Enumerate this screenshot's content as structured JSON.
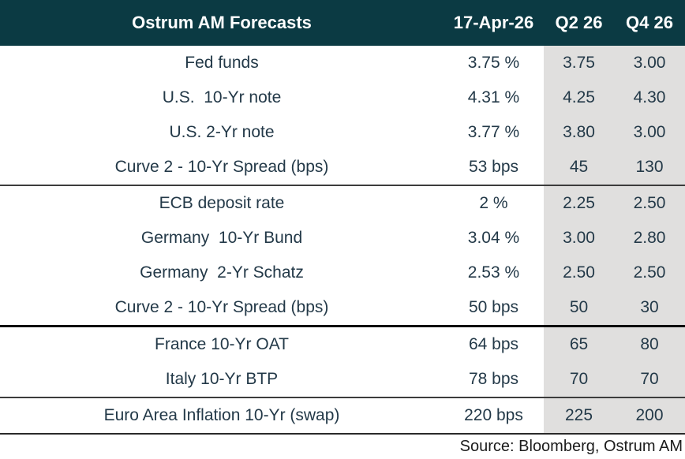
{
  "table": {
    "headers": [
      "Ostrum AM Forecasts",
      "17-Apr-26",
      "Q2 26",
      "Q4 26"
    ],
    "rows": [
      {
        "label": "Fed funds",
        "current": "3.75 %",
        "q2_26": "3.75",
        "q4_26": "3.00",
        "separator_after": ""
      },
      {
        "label": "U.S.  10-Yr note",
        "current": "4.31 %",
        "q2_26": "4.25",
        "q4_26": "4.30",
        "separator_after": ""
      },
      {
        "label": "U.S. 2-Yr note",
        "current": "3.77 %",
        "q2_26": "3.80",
        "q4_26": "3.00",
        "separator_after": ""
      },
      {
        "label": "Curve 2 - 10-Yr Spread (bps)",
        "current": "53 bps",
        "q2_26": "45",
        "q4_26": "130",
        "separator_after": "medium"
      },
      {
        "label": "ECB deposit rate",
        "current": "2 %",
        "q2_26": "2.25",
        "q4_26": "2.50",
        "separator_after": ""
      },
      {
        "label": "Germany  10-Yr Bund",
        "current": "3.04 %",
        "q2_26": "3.00",
        "q4_26": "2.80",
        "separator_after": ""
      },
      {
        "label": "Germany  2-Yr Schatz",
        "current": "2.53 %",
        "q2_26": "2.50",
        "q4_26": "2.50",
        "separator_after": ""
      },
      {
        "label": "Curve 2 - 10-Yr Spread (bps)",
        "current": "50 bps",
        "q2_26": "50",
        "q4_26": "30",
        "separator_after": "thick"
      },
      {
        "label": "France 10-Yr OAT",
        "current": "64 bps",
        "q2_26": "65",
        "q4_26": "80",
        "separator_after": ""
      },
      {
        "label": "Italy 10-Yr BTP",
        "current": "78 bps",
        "q2_26": "70",
        "q4_26": "70",
        "separator_after": "medium"
      },
      {
        "label": "Euro Area Inflation 10-Yr (swap)",
        "current": "220 bps",
        "q2_26": "225",
        "q4_26": "200",
        "separator_after": "bottom"
      }
    ]
  },
  "source_note": "Source: Bloomberg, Ostrum AM",
  "colors": {
    "header_bg": "#0b3a43",
    "header_text": "#ffffff",
    "body_text": "#233948",
    "forecast_band_bg": "#e0dfde",
    "separator_dark": "#0a0a0a",
    "separator_medium": "#3c3c3c",
    "source_text": "#1c1c1c"
  },
  "chart_data": {
    "type": "table",
    "title": "Ostrum AM Forecasts",
    "columns": [
      "Ostrum AM Forecasts",
      "17-Apr-26",
      "Q2 26",
      "Q4 26"
    ],
    "rows": [
      [
        "Fed funds",
        "3.75 %",
        "3.75",
        "3.00"
      ],
      [
        "U.S. 10-Yr note",
        "4.31 %",
        "4.25",
        "4.30"
      ],
      [
        "U.S. 2-Yr note",
        "3.77 %",
        "3.80",
        "3.00"
      ],
      [
        "Curve 2 - 10-Yr Spread (bps)",
        "53 bps",
        "45",
        "130"
      ],
      [
        "ECB deposit rate",
        "2 %",
        "2.25",
        "2.50"
      ],
      [
        "Germany 10-Yr Bund",
        "3.04 %",
        "3.00",
        "2.80"
      ],
      [
        "Germany 2-Yr Schatz",
        "2.53 %",
        "2.50",
        "2.50"
      ],
      [
        "Curve 2 - 10-Yr Spread (bps)",
        "50 bps",
        "50",
        "30"
      ],
      [
        "France 10-Yr OAT",
        "64 bps",
        "65",
        "80"
      ],
      [
        "Italy 10-Yr BTP",
        "78 bps",
        "70",
        "70"
      ],
      [
        "Euro Area Inflation 10-Yr (swap)",
        "220 bps",
        "225",
        "200"
      ]
    ],
    "section_breaks_after_row_index": [
      3,
      7,
      9
    ],
    "source": "Source: Bloomberg, Ostrum AM"
  }
}
